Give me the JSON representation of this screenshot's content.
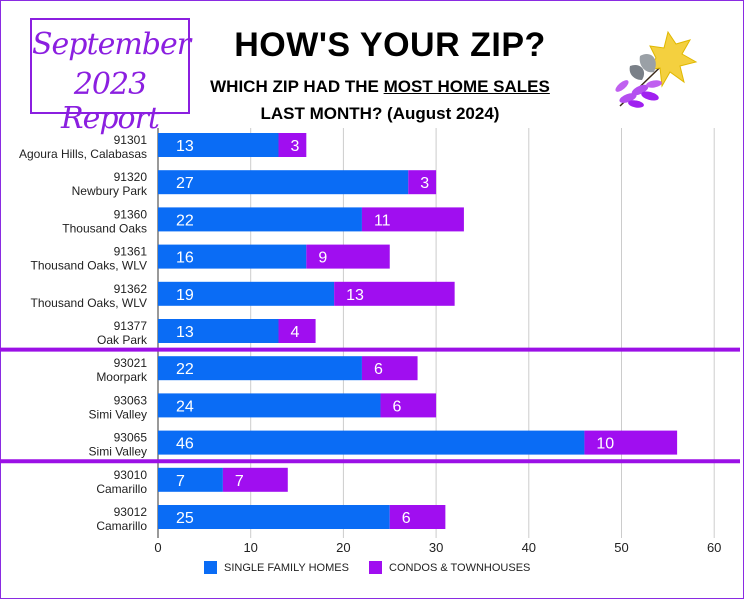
{
  "report_badge": {
    "line1": "September",
    "line2": "2023 Report"
  },
  "header": {
    "title": "HOW'S YOUR ZIP?",
    "subtitle_pre": "WHICH ZIP HAD THE ",
    "subtitle_emph": "MOST HOME SALES",
    "subtitle_line2": "LAST MONTH? (August 2024)"
  },
  "leaf_icon": "autumn-leaves-icon",
  "colors": {
    "single_family": "#0a6cf5",
    "condos": "#a00ef0",
    "separator": "#9b10e6",
    "grid": "#cccccc"
  },
  "chart_data": {
    "type": "bar",
    "orientation": "horizontal",
    "stacked": true,
    "categories": [
      {
        "zip": "91301",
        "area": "Agoura Hills, Calabasas"
      },
      {
        "zip": "91320",
        "area": "Newbury Park"
      },
      {
        "zip": "91360",
        "area": "Thousand Oaks"
      },
      {
        "zip": "91361",
        "area": "Thousand Oaks, WLV"
      },
      {
        "zip": "91362",
        "area": "Thousand Oaks, WLV"
      },
      {
        "zip": "91377",
        "area": "Oak Park"
      },
      {
        "zip": "93021",
        "area": "Moorpark"
      },
      {
        "zip": "93063",
        "area": "Simi Valley"
      },
      {
        "zip": "93065",
        "area": "Simi Valley"
      },
      {
        "zip": "93010",
        "area": "Camarillo"
      },
      {
        "zip": "93012",
        "area": "Camarillo"
      }
    ],
    "series": [
      {
        "name": "SINGLE FAMILY HOMES",
        "values": [
          13,
          27,
          22,
          16,
          19,
          13,
          22,
          24,
          46,
          7,
          25
        ]
      },
      {
        "name": "CONDOS & TOWNHOUSES",
        "values": [
          3,
          3,
          11,
          9,
          13,
          4,
          6,
          6,
          10,
          7,
          6
        ]
      }
    ],
    "group_separators_after": [
      5,
      8
    ],
    "xlim": [
      0,
      62
    ],
    "xticks": [
      0,
      10,
      20,
      30,
      40,
      50,
      60
    ],
    "grid": true,
    "legend": "bottom"
  }
}
